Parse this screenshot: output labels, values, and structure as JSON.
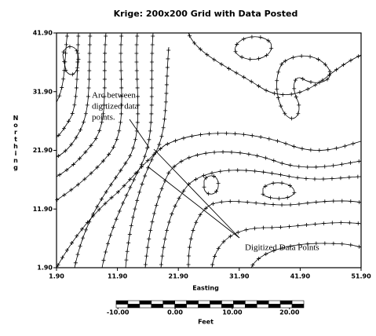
{
  "chart_data": {
    "type": "contour",
    "title": "Krige: 200x200 Grid with Data Posted",
    "xlabel": "Easting",
    "ylabel": "Northing",
    "xlim": [
      1.9,
      51.9
    ],
    "ylim": [
      1.9,
      41.9
    ],
    "xticks": [
      {
        "value": 1.9,
        "label": "1.90"
      },
      {
        "value": 11.9,
        "label": "11.90"
      },
      {
        "value": 21.9,
        "label": "21.90"
      },
      {
        "value": 31.9,
        "label": "31.90"
      },
      {
        "value": 41.9,
        "label": "41.90"
      },
      {
        "value": 51.9,
        "label": "51.90"
      }
    ],
    "yticks": [
      {
        "value": 1.9,
        "label": "1.90"
      },
      {
        "value": 11.9,
        "label": "11.90"
      },
      {
        "value": 21.9,
        "label": "21.90"
      },
      {
        "value": 31.9,
        "label": "31.90"
      },
      {
        "value": 41.9,
        "label": "41.90"
      }
    ],
    "annotations": [
      [
        "Arc between",
        "digitized data",
        "points."
      ],
      [
        "Digitized Data Points"
      ]
    ],
    "scale_bar": {
      "label": "Feet",
      "lim": [
        -10.3,
        22.5
      ],
      "ticks": [
        {
          "value": -10,
          "label": "-10.00"
        },
        {
          "value": 0,
          "label": "0.00"
        },
        {
          "value": 10,
          "label": "10.00"
        },
        {
          "value": 20,
          "label": "20.00"
        }
      ]
    }
  }
}
